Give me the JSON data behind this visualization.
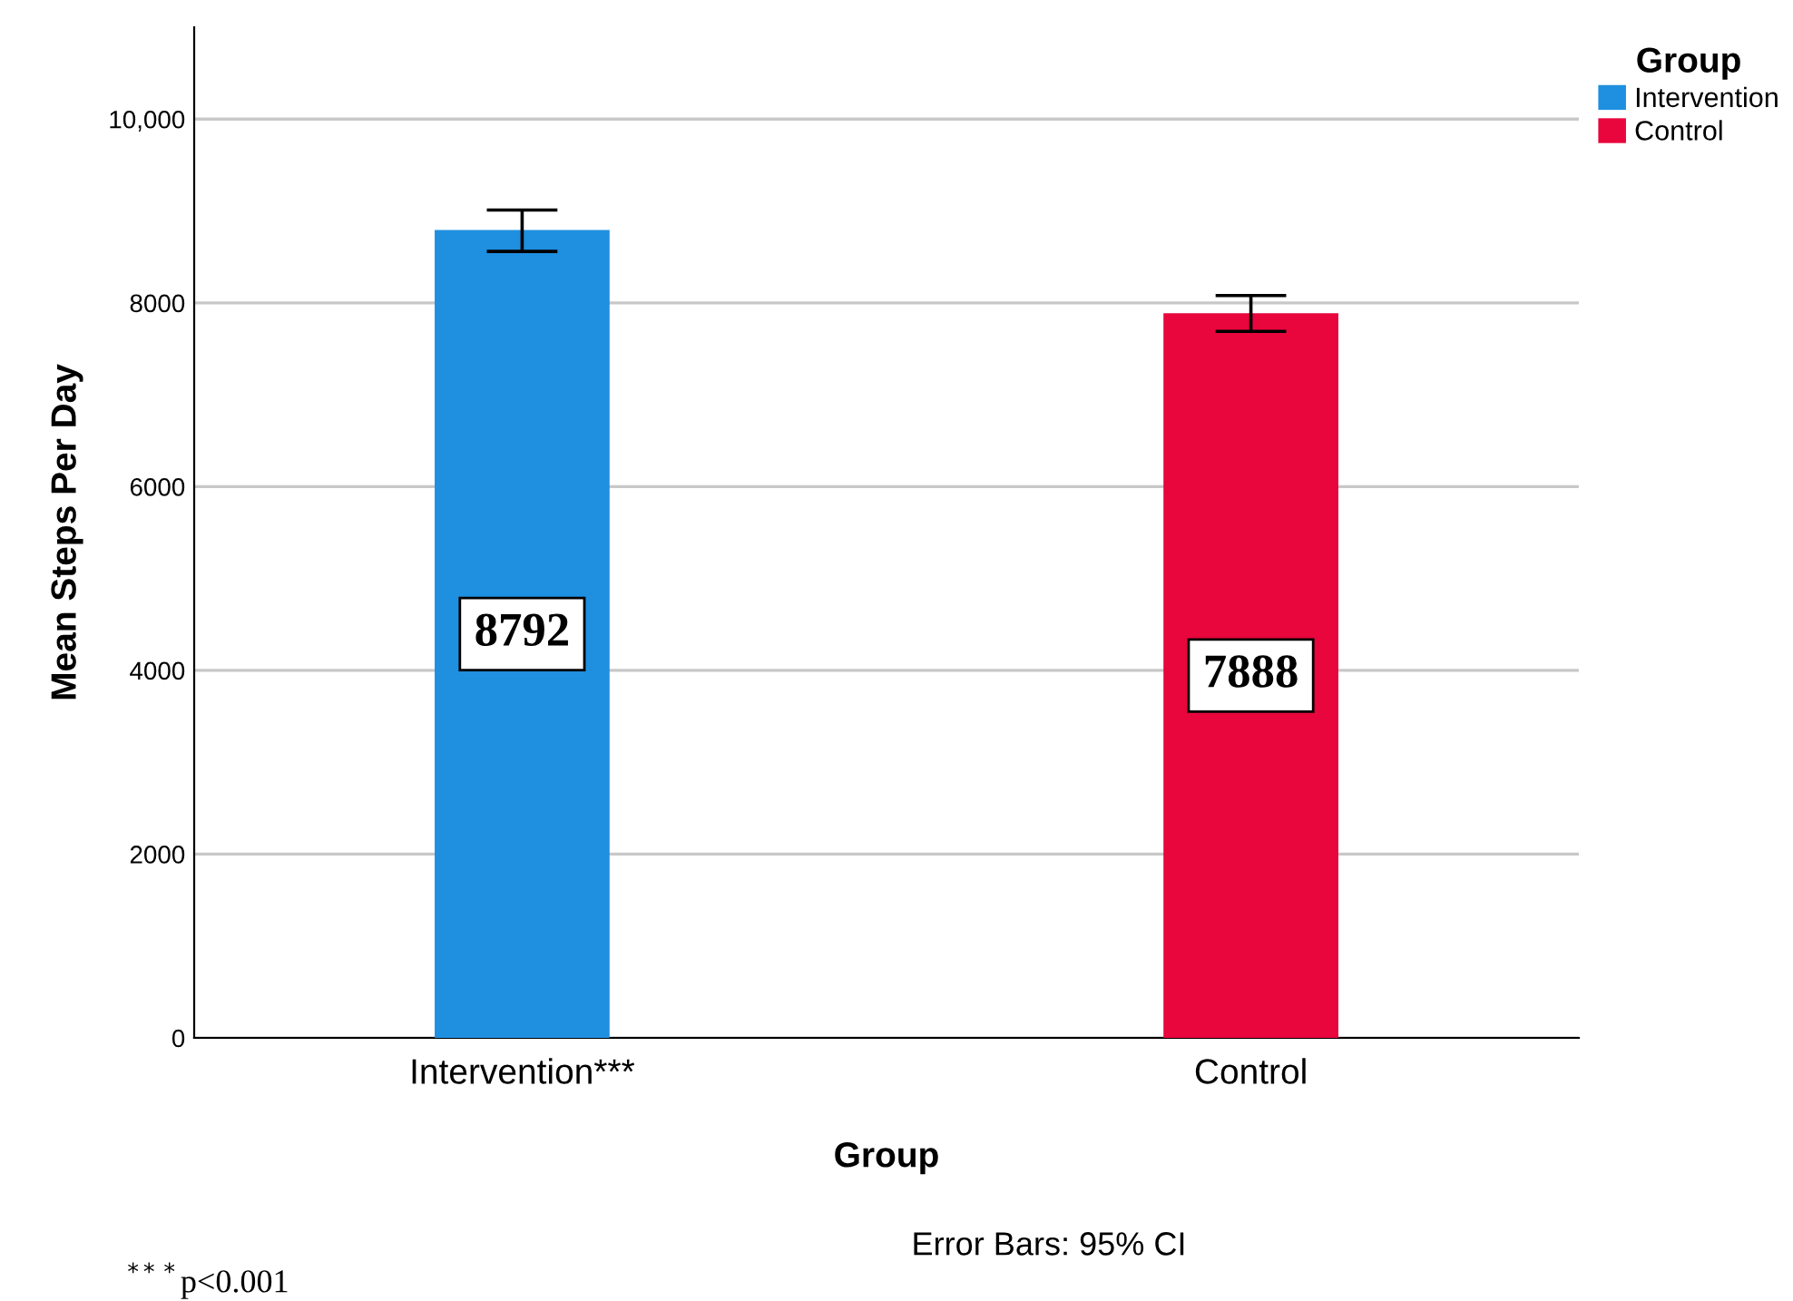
{
  "chart_data": {
    "type": "bar",
    "xlabel": "Group",
    "ylabel": "Mean Steps Per Day",
    "legend_title": "Group",
    "categories": [
      "Intervention***",
      "Control"
    ],
    "series": [
      {
        "name": "Intervention",
        "color": "#1f8fe0",
        "values": [
          8792,
          null
        ],
        "errors": [
          [
            8560,
            9010
          ],
          null
        ]
      },
      {
        "name": "Control",
        "color": "#e8063c",
        "values": [
          null,
          7888
        ],
        "errors": [
          null,
          [
            7690,
            8080
          ]
        ]
      }
    ],
    "ylim": [
      0,
      11000
    ],
    "yticks": [
      0,
      2000,
      4000,
      6000,
      8000,
      {
        "value": 10000,
        "label": "10,000"
      }
    ],
    "grid": "y",
    "legend": "top right",
    "data_labels": true,
    "annotations": [
      "Error Bars: 95% CI",
      "$^{***}$p<0.001"
    ]
  }
}
